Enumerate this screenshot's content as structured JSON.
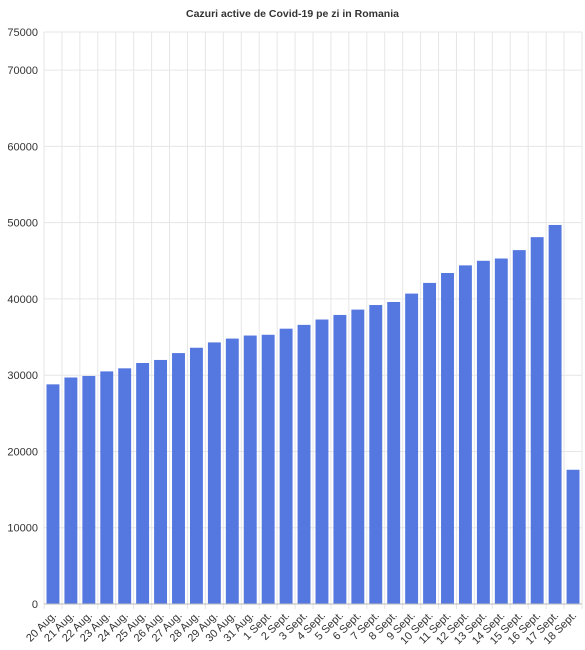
{
  "chart_data": {
    "type": "bar",
    "title": "Cazuri active de Covid-19 pe zi in Romania",
    "xlabel": "",
    "ylabel": "",
    "ylim": [
      0,
      75000
    ],
    "yticks": [
      0,
      10000,
      20000,
      30000,
      40000,
      50000,
      60000,
      70000,
      75000
    ],
    "grid": true,
    "legend": "none",
    "bar_color": "#5477e0",
    "categories": [
      "20 Aug.",
      "21 Aug.",
      "22 Aug.",
      "23 Aug.",
      "24 Aug.",
      "25 Aug.",
      "26 Aug.",
      "27 Aug.",
      "28 Aug.",
      "29 Aug.",
      "30 Aug.",
      "31 Aug.",
      "1 Sept.",
      "2 Sept.",
      "3 Sept.",
      "4 Sept.",
      "5 Sept.",
      "6 Sept.",
      "7 Sept.",
      "8 Sept.",
      "9 Sept.",
      "10 Sept.",
      "11 Sept.",
      "12 Sept.",
      "13 Sept.",
      "14 Sept.",
      "15 Sept.",
      "16 Sept.",
      "17 Sept.",
      "18 Sept."
    ],
    "values": [
      28800,
      29700,
      29900,
      30500,
      30900,
      31600,
      32000,
      32900,
      33600,
      34300,
      34800,
      35200,
      35300,
      36100,
      36600,
      37300,
      37900,
      38600,
      39200,
      39600,
      40700,
      42100,
      43400,
      44400,
      45000,
      45300,
      46400,
      48100,
      49700,
      17600
    ]
  }
}
